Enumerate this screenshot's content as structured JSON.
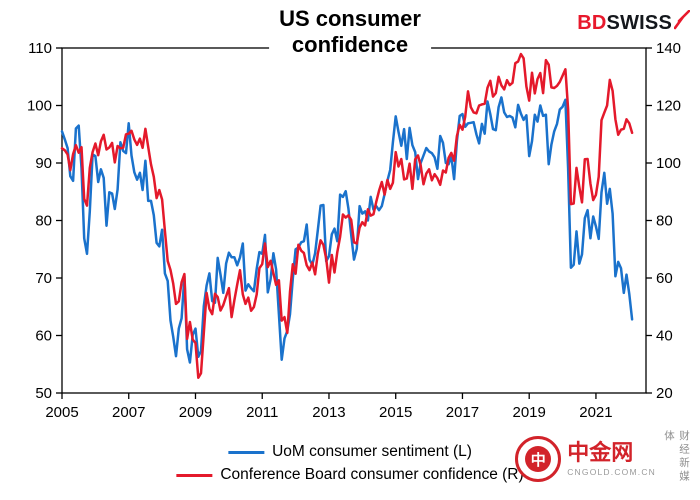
{
  "title": {
    "line1": "US consumer",
    "line2": "confidence"
  },
  "logo": {
    "bd": "BD",
    "swiss": "SWISS",
    "bolt_icon": "lightning-slash",
    "bolt_color": "#e8192c"
  },
  "legend": [
    {
      "label": "UoM consumer sentiment (L)",
      "color": "#1a72cc"
    },
    {
      "label": "Conference Board consumer confidence (R)",
      "color": "#e4192b"
    }
  ],
  "watermark": {
    "logo_glyph": "中",
    "brand": "中金网",
    "domain": "CNGOLD.COM.CN",
    "tagline": "财经新媒体",
    "brand_color": "#d2232a"
  },
  "chart_data": {
    "type": "line",
    "title": "US consumer confidence",
    "x_axis": {
      "start_year": 2005,
      "freq": "monthly",
      "months_total": 210,
      "ticks": [
        2005,
        2007,
        2009,
        2011,
        2013,
        2015,
        2017,
        2019,
        2021
      ]
    },
    "left_axis": {
      "min": 50,
      "max": 110,
      "ticks": [
        50,
        60,
        70,
        80,
        90,
        100,
        110
      ]
    },
    "right_axis": {
      "min": 20,
      "max": 140,
      "ticks": [
        20,
        40,
        60,
        80,
        100,
        120,
        140
      ]
    },
    "grid": false,
    "legend_position": "bottom",
    "series": [
      {
        "name": "UoM consumer sentiment (L)",
        "axis": "left",
        "color": "#1a72cc",
        "values": [
          95.5,
          94.1,
          92.6,
          87.7,
          86.9,
          96.0,
          96.5,
          89.1,
          76.9,
          74.2,
          81.6,
          91.5,
          91.2,
          86.7,
          88.9,
          87.4,
          79.1,
          84.9,
          84.7,
          82.0,
          85.4,
          93.6,
          92.1,
          91.7,
          96.9,
          91.3,
          88.4,
          87.1,
          88.3,
          85.3,
          90.4,
          83.4,
          83.4,
          80.9,
          76.1,
          75.5,
          78.4,
          70.8,
          69.5,
          62.6,
          59.8,
          56.4,
          61.2,
          63.0,
          70.3,
          57.6,
          55.3,
          60.1,
          61.2,
          56.3,
          57.3,
          65.1,
          68.7,
          70.8,
          66.0,
          65.7,
          73.5,
          70.6,
          67.4,
          72.5,
          74.4,
          73.6,
          73.6,
          72.2,
          73.6,
          76.0,
          67.8,
          68.9,
          68.2,
          67.7,
          71.6,
          74.5,
          74.2,
          77.5,
          67.5,
          69.8,
          74.3,
          71.5,
          63.7,
          55.8,
          59.5,
          60.8,
          63.7,
          69.9,
          75.0,
          75.3,
          76.2,
          76.4,
          79.3,
          73.2,
          72.3,
          74.3,
          78.3,
          82.6,
          82.7,
          72.9,
          73.8,
          77.6,
          78.6,
          76.4,
          84.5,
          84.1,
          85.1,
          82.1,
          77.5,
          73.2,
          75.1,
          82.5,
          81.2,
          81.6,
          80.0,
          84.1,
          81.9,
          82.5,
          81.8,
          82.5,
          84.6,
          86.9,
          88.8,
          93.6,
          98.1,
          95.4,
          93.0,
          95.9,
          90.7,
          96.1,
          93.1,
          91.9,
          87.2,
          90.0,
          91.3,
          92.6,
          92.0,
          91.7,
          91.0,
          89.0,
          94.7,
          93.5,
          90.0,
          89.8,
          91.2,
          87.2,
          93.8,
          98.2,
          98.5,
          96.3,
          96.9,
          97.0,
          97.1,
          95.0,
          93.4,
          96.8,
          95.1,
          100.7,
          98.5,
          95.9,
          95.7,
          99.7,
          101.4,
          98.8,
          98.0,
          98.2,
          97.9,
          96.2,
          100.1,
          98.6,
          97.5,
          98.3,
          91.2,
          93.8,
          98.4,
          97.2,
          100.0,
          98.2,
          98.4,
          89.8,
          93.2,
          95.5,
          96.8,
          99.3,
          99.8,
          101.0,
          89.1,
          71.8,
          72.3,
          78.1,
          72.5,
          74.1,
          80.4,
          81.8,
          76.9,
          80.7,
          79.0,
          76.8,
          84.9,
          88.3,
          82.9,
          85.5,
          81.2,
          70.3,
          72.8,
          71.7,
          67.4,
          70.6,
          67.2,
          62.8
        ]
      },
      {
        "name": "Conference Board consumer confidence (R)",
        "axis": "right",
        "color": "#e4192b",
        "values": [
          105.1,
          104.4,
          103.0,
          97.5,
          103.1,
          106.2,
          103.6,
          105.5,
          87.5,
          85.2,
          98.3,
          103.8,
          106.8,
          102.7,
          107.5,
          109.8,
          104.7,
          105.4,
          107.0,
          100.2,
          105.9,
          105.1,
          105.3,
          110.0,
          110.2,
          111.2,
          108.2,
          106.3,
          108.5,
          105.3,
          111.9,
          105.6,
          99.5,
          95.2,
          87.8,
          90.6,
          87.3,
          76.4,
          65.9,
          62.8,
          58.1,
          51.0,
          51.9,
          58.5,
          61.4,
          38.8,
          44.7,
          38.6,
          37.4,
          25.3,
          26.9,
          40.8,
          54.8,
          49.3,
          47.4,
          54.5,
          53.4,
          48.7,
          50.6,
          53.6,
          56.5,
          46.4,
          52.3,
          57.7,
          62.7,
          54.3,
          51.0,
          53.2,
          48.6,
          49.9,
          54.3,
          63.4,
          64.8,
          72.0,
          63.8,
          66.0,
          61.7,
          57.6,
          59.2,
          45.2,
          46.4,
          40.9,
          55.2,
          64.8,
          61.5,
          71.6,
          69.5,
          68.7,
          64.4,
          62.7,
          65.4,
          61.3,
          68.4,
          73.1,
          71.5,
          66.7,
          58.4,
          68.0,
          61.9,
          69.0,
          74.3,
          82.1,
          81.0,
          81.8,
          80.2,
          72.4,
          72.0,
          77.5,
          79.4,
          78.3,
          83.9,
          81.7,
          82.2,
          86.4,
          90.3,
          93.4,
          89.0,
          94.1,
          91.0,
          93.1,
          103.8,
          98.8,
          101.4,
          94.3,
          94.6,
          99.8,
          91.0,
          101.3,
          102.6,
          99.1,
          92.6,
          96.3,
          97.8,
          94.0,
          96.1,
          94.7,
          92.4,
          97.4,
          96.7,
          101.8,
          103.5,
          100.8,
          109.4,
          113.3,
          111.6,
          116.1,
          124.9,
          119.4,
          117.6,
          117.3,
          120.0,
          120.4,
          120.6,
          126.2,
          128.6,
          123.1,
          124.3,
          130.0,
          127.0,
          125.6,
          128.8,
          127.1,
          127.9,
          134.7,
          135.3,
          137.9,
          136.4,
          126.6,
          121.7,
          131.4,
          124.2,
          129.2,
          131.3,
          124.3,
          135.8,
          134.2,
          126.3,
          126.1,
          126.8,
          128.2,
          130.4,
          132.6,
          118.8,
          85.7,
          85.9,
          98.3,
          91.7,
          86.3,
          101.3,
          101.4,
          92.9,
          87.1,
          88.9,
          95.2,
          114.9,
          117.5,
          120.0,
          128.9,
          125.1,
          115.2,
          109.8,
          111.6,
          111.9,
          115.2,
          113.8,
          110.5
        ]
      }
    ]
  }
}
